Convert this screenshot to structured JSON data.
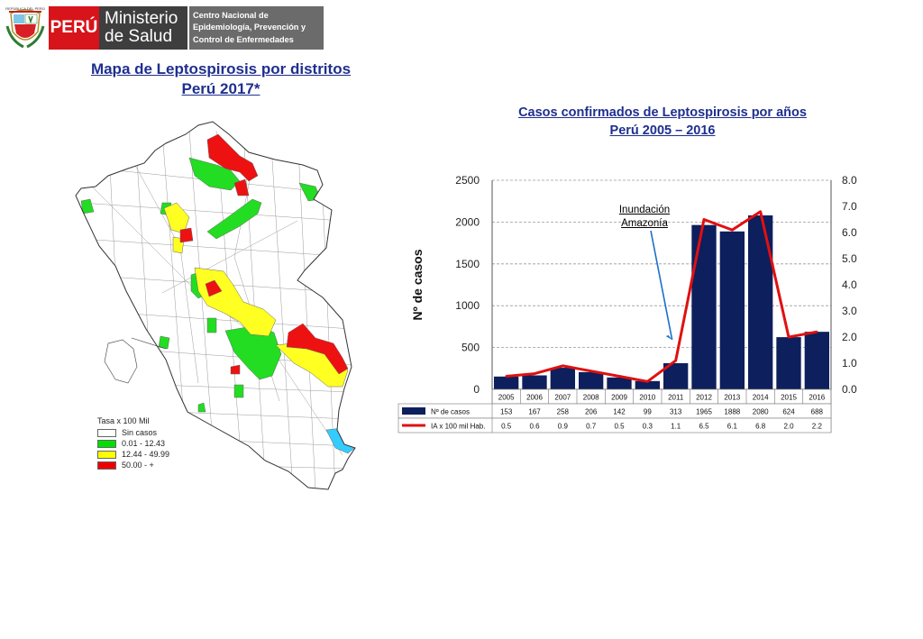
{
  "header": {
    "brand_country": "PERÚ",
    "ministry_line1": "Ministerio",
    "ministry_line2": "de Salud",
    "center_line1": "Centro Nacional de",
    "center_line2": "Epidemiología, Prevención y",
    "center_line3": "Control de Enfermedades"
  },
  "map": {
    "title_line1": "Mapa de Leptospirosis por distritos",
    "title_line2": "Perú 2017*",
    "legend_title": "Tasa x 100 Mil",
    "legend_items": [
      {
        "label": "Sin casos",
        "color": "#ffffff"
      },
      {
        "label": "0.01 - 12.43",
        "color": "#00e000"
      },
      {
        "label": "12.44 - 49.99",
        "color": "#ffff00"
      },
      {
        "label": "50.00 - +",
        "color": "#ee0000"
      }
    ],
    "lake_color": "#33ccff"
  },
  "chart": {
    "title_line1": "Casos confirmados de Leptospirosis por años",
    "title_line2": "Perú 2005 – 2016",
    "annotation_line1": "Inundación",
    "annotation_line2": "Amazonía"
  },
  "chart_data": {
    "type": "bar",
    "categories": [
      "2005",
      "2006",
      "2007",
      "2008",
      "2009",
      "2010",
      "2011",
      "2012",
      "2013",
      "2014",
      "2015",
      "2016"
    ],
    "series": [
      {
        "name": "Nº de casos",
        "type": "bar",
        "axis": "left",
        "color": "#0d1f5c",
        "values": [
          153,
          167,
          258,
          206,
          142,
          99,
          313,
          1965,
          1888,
          2080,
          624,
          688
        ]
      },
      {
        "name": "IA x 100 mil Hab.",
        "type": "line",
        "axis": "right",
        "color": "#e01010",
        "labels": [
          "0.5",
          "0.6",
          "0.9",
          "0.7",
          "0.5",
          "0.3",
          "1.1",
          "6.5",
          "6.1",
          "6.8",
          "2.0",
          "2.2"
        ],
        "values": [
          0.5,
          0.6,
          0.9,
          0.7,
          0.5,
          0.3,
          1.1,
          6.5,
          6.1,
          6.8,
          2.0,
          2.2
        ]
      }
    ],
    "ylabel": "Nº de casos",
    "ylim": [
      0,
      2500
    ],
    "y_ticks": [
      "0",
      "500",
      "1000",
      "1500",
      "2000",
      "2500"
    ],
    "y2lim": [
      0,
      8
    ],
    "y2_ticks": [
      "0.0",
      "1.0",
      "2.0",
      "3.0",
      "4.0",
      "5.0",
      "6.0",
      "7.0",
      "8.0"
    ],
    "grid": true,
    "legend": "data-table"
  }
}
